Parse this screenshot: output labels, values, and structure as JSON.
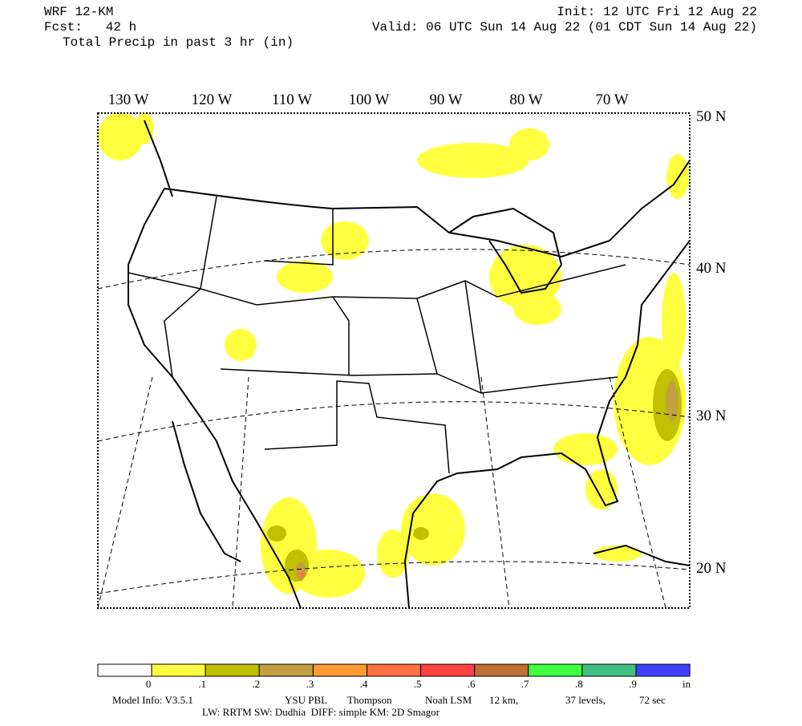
{
  "header": {
    "model": "WRF 12-KM",
    "forecast": "Fcst:   42 h",
    "field": "Total Precip in past 3 hr (in)",
    "init": "Init: 12 UTC Fri 12 Aug 22",
    "valid": "Valid: 06 UTC Sun 14 Aug 22 (01 CDT Sun 14 Aug 22)"
  },
  "map": {
    "longitude_labels": [
      "130 W",
      "120 W",
      "110 W",
      "100 W",
      "90 W",
      "80 W",
      "70 W"
    ],
    "latitude_labels": [
      "50 N",
      "40 N",
      "30 N",
      "20 N"
    ]
  },
  "legend": {
    "colors": [
      "#ffffff",
      "#ffff40",
      "#c0c000",
      "#c0a040",
      "#ff9a33",
      "#ff7040",
      "#ff4040",
      "#c07030",
      "#40ff40",
      "#40c080",
      "#4040ff"
    ],
    "labels": [
      "0",
      ".1",
      ".2",
      ".3",
      ".4",
      ".5",
      ".6",
      ".7",
      ".8",
      ".9",
      "in"
    ]
  },
  "footer": {
    "line1": [
      "Model Info: V3.5.1",
      "YSU PBL",
      "Thompson",
      "Noah LSM",
      "12 km,",
      "37 levels,",
      "72 sec"
    ],
    "line2": "LW: RRTM SW: Dudhia  DIFF: simple KM: 2D Smagor"
  }
}
